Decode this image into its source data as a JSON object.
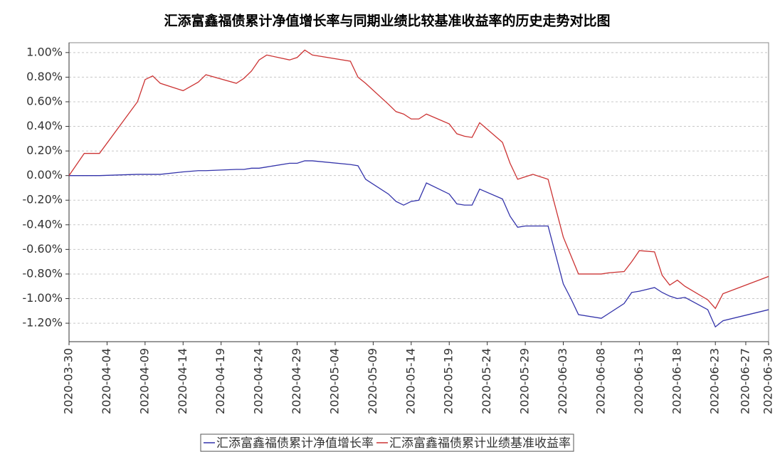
{
  "chart_data": {
    "type": "line",
    "title": "汇添富鑫福债累计净值增长率与同期业绩比较基准收益率的历史走势对比图",
    "x": [
      "2020-03-30",
      "2020-04-01",
      "2020-04-03",
      "2020-04-08",
      "2020-04-09",
      "2020-04-10",
      "2020-04-11",
      "2020-04-14",
      "2020-04-16",
      "2020-04-17",
      "2020-04-21",
      "2020-04-22",
      "2020-04-23",
      "2020-04-24",
      "2020-04-25",
      "2020-04-28",
      "2020-04-29",
      "2020-04-30",
      "2020-05-01",
      "2020-05-06",
      "2020-05-07",
      "2020-05-08",
      "2020-05-11",
      "2020-05-12",
      "2020-05-13",
      "2020-05-14",
      "2020-05-15",
      "2020-05-16",
      "2020-05-19",
      "2020-05-20",
      "2020-05-21",
      "2020-05-22",
      "2020-05-23",
      "2020-05-26",
      "2020-05-27",
      "2020-05-28",
      "2020-05-29",
      "2020-05-30",
      "2020-06-01",
      "2020-06-03",
      "2020-06-04",
      "2020-06-05",
      "2020-06-08",
      "2020-06-09",
      "2020-06-11",
      "2020-06-12",
      "2020-06-13",
      "2020-06-15",
      "2020-06-16",
      "2020-06-17",
      "2020-06-18",
      "2020-06-19",
      "2020-06-22",
      "2020-06-23",
      "2020-06-24",
      "2020-06-30"
    ],
    "series": [
      {
        "name": "汇添富鑫福债累计净值增长率",
        "color": "#3333aa",
        "values": [
          0,
          0,
          0,
          0.01,
          0.01,
          0.01,
          0.01,
          0.03,
          0.04,
          0.04,
          0.05,
          0.05,
          0.06,
          0.06,
          0.07,
          0.1,
          0.1,
          0.12,
          0.12,
          0.09,
          0.08,
          -0.03,
          -0.15,
          -0.21,
          -0.24,
          -0.21,
          -0.2,
          -0.06,
          -0.15,
          -0.23,
          -0.24,
          -0.24,
          -0.11,
          -0.19,
          -0.33,
          -0.42,
          -0.41,
          -0.41,
          -0.41,
          -0.88,
          -1.0,
          -1.13,
          -1.16,
          -1.12,
          -1.04,
          -0.95,
          -0.94,
          -0.91,
          -0.95,
          -0.98,
          -1.0,
          -0.99,
          -1.09,
          -1.23,
          -1.18,
          -1.09
        ]
      },
      {
        "name": "汇添富鑫福债累计业绩基准收益率",
        "color": "#cc3333",
        "values": [
          0,
          0.18,
          0.18,
          0.6,
          0.78,
          0.81,
          0.75,
          0.69,
          0.76,
          0.82,
          0.75,
          0.79,
          0.85,
          0.94,
          0.98,
          0.94,
          0.96,
          1.02,
          0.98,
          0.93,
          0.8,
          0.75,
          0.58,
          0.52,
          0.5,
          0.46,
          0.46,
          0.5,
          0.42,
          0.34,
          0.32,
          0.31,
          0.43,
          0.27,
          0.1,
          -0.03,
          -0.01,
          0.01,
          -0.03,
          -0.5,
          -0.65,
          -0.8,
          -0.8,
          -0.79,
          -0.78,
          -0.7,
          -0.61,
          -0.62,
          -0.81,
          -0.89,
          -0.85,
          -0.9,
          -1.01,
          -1.08,
          -0.96,
          -0.82
        ]
      }
    ],
    "xlim": [
      "2020-03-30",
      "2020-06-30"
    ],
    "xticks": [
      "2020-03-30",
      "2020-04-04",
      "2020-04-09",
      "2020-04-14",
      "2020-04-19",
      "2020-04-24",
      "2020-04-29",
      "2020-05-04",
      "2020-05-09",
      "2020-05-14",
      "2020-05-19",
      "2020-05-24",
      "2020-05-29",
      "2020-06-03",
      "2020-06-08",
      "2020-06-13",
      "2020-06-18",
      "2020-06-23",
      "2020-06-27",
      "2020-06-30"
    ],
    "ylim": [
      -1.35,
      1.08
    ],
    "yticks": [
      {
        "value": 1,
        "label": "1.00%"
      },
      {
        "value": 0.8,
        "label": "0.80%"
      },
      {
        "value": 0.6,
        "label": "0.60%"
      },
      {
        "value": 0.4,
        "label": "0.40%"
      },
      {
        "value": 0.2,
        "label": "0.20%"
      },
      {
        "value": 0,
        "label": "0.00%"
      },
      {
        "value": -0.2,
        "label": "-0.20%"
      },
      {
        "value": -0.4,
        "label": "-0.40%"
      },
      {
        "value": -0.6,
        "label": "-0.60%"
      },
      {
        "value": -0.8,
        "label": "-0.80%"
      },
      {
        "value": -1,
        "label": "-1.00%"
      },
      {
        "value": -1.2,
        "label": "-1.20%"
      }
    ],
    "grid": true
  }
}
